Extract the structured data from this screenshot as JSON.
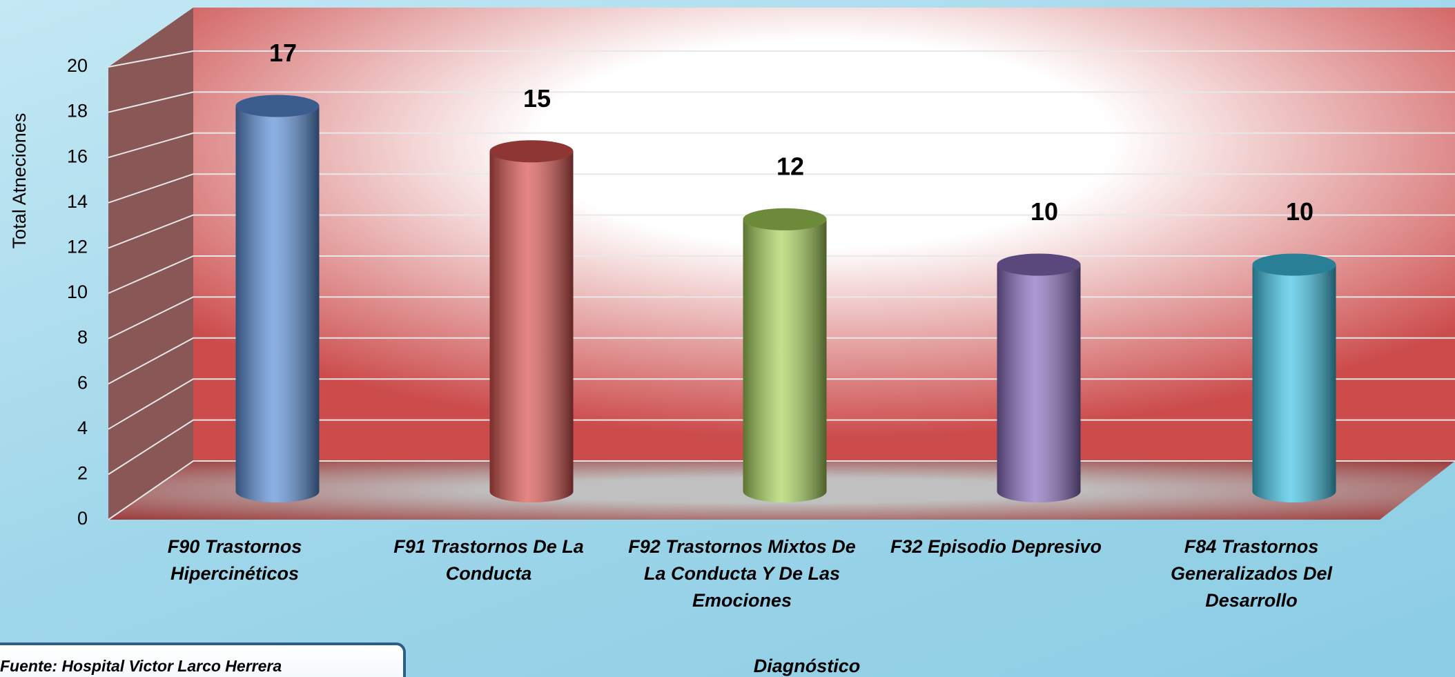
{
  "chart_data": {
    "type": "bar",
    "x_label": "Diagnóstico",
    "y_label": "Total Atneciones",
    "source": "Fuente:  Hospital Victor Larco Herrera",
    "categories": [
      "F90 Trastornos Hipercinéticos",
      "F91 Trastornos De La Conducta",
      "F92 Trastornos Mixtos De La Conducta Y De Las Emociones",
      "F32 Episodio Depresivo",
      "F84 Trastornos Generalizados Del Desarrollo"
    ],
    "values": [
      17,
      15,
      12,
      10,
      10
    ],
    "colors": [
      "#5b8fd9",
      "#d9534f",
      "#a8d35a",
      "#8a6dbf",
      "#3fc4e6"
    ],
    "ylim": [
      0,
      20
    ],
    "yticks": [
      0,
      2,
      4,
      6,
      8,
      10,
      12,
      14,
      16,
      18,
      20
    ],
    "grid": true
  }
}
